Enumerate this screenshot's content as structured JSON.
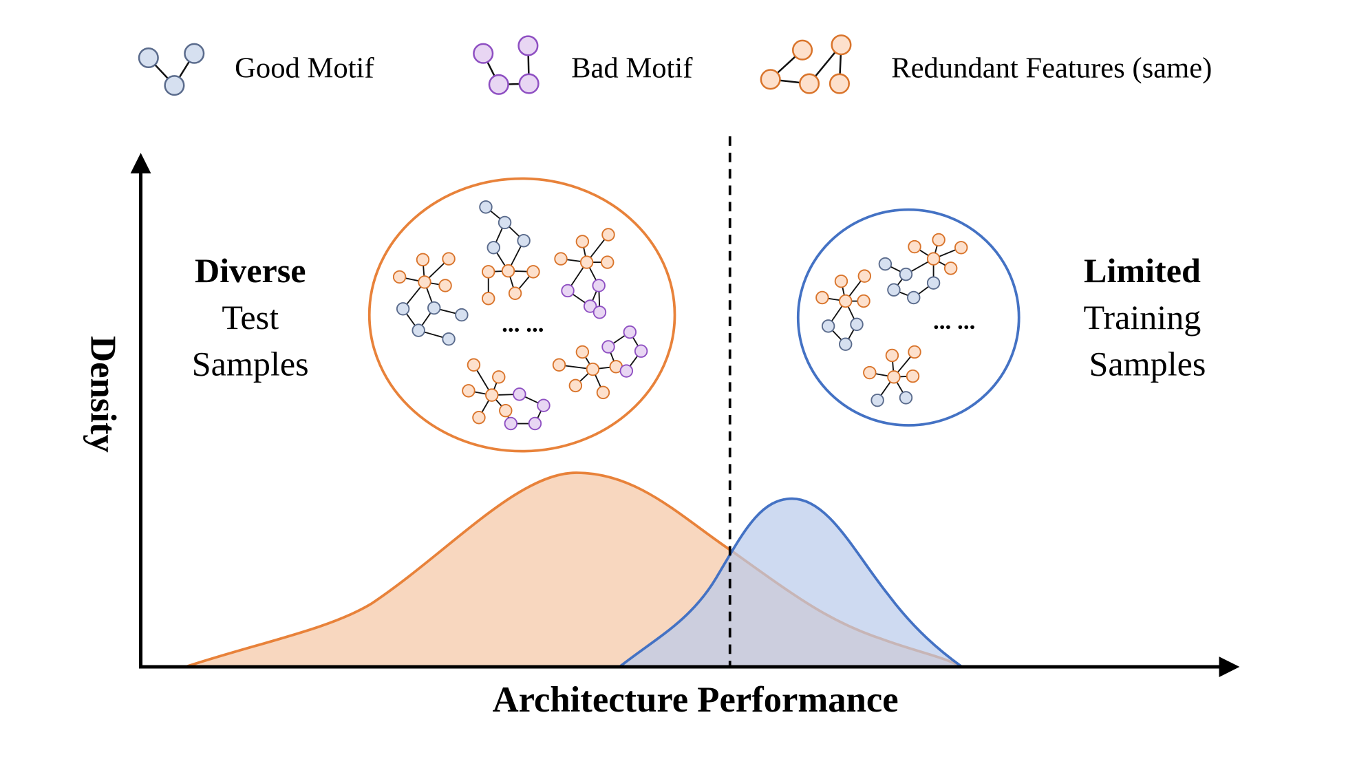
{
  "legend": [
    {
      "label": "Good Motif"
    },
    {
      "label": "Bad Motif"
    },
    {
      "label": "Redundant Features (same)"
    }
  ],
  "axes": {
    "x_label": "Architecture Performance",
    "y_label": "Density"
  },
  "test_group": {
    "title": "Diverse",
    "lines": [
      "Test",
      "Samples"
    ],
    "ellipsis": "... ..."
  },
  "train_group": {
    "title": "Limited",
    "lines": [
      "Training",
      "Samples"
    ],
    "ellipsis": "... ..."
  }
}
